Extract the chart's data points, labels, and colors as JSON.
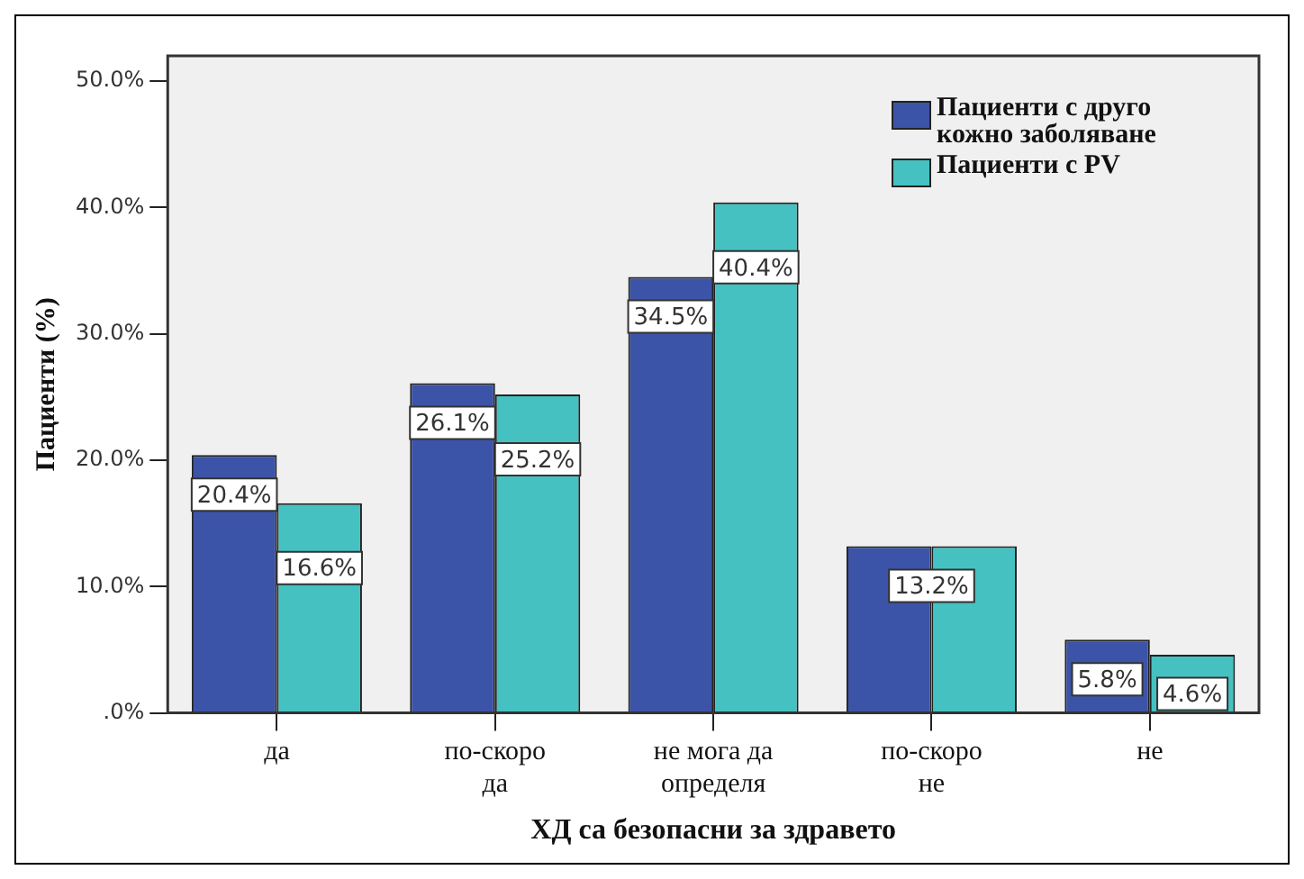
{
  "chart_data": {
    "type": "bar",
    "xlabel": "ХД са безопасни за здравето",
    "ylabel": "Пациенти (%)",
    "categories": [
      "да",
      "по-скоро да",
      "не мога да определя",
      "по-скоро не",
      "не"
    ],
    "series": [
      {
        "name": "Пациенти с друго кожно заболяване",
        "color": "#3c54a8",
        "values": [
          20.4,
          26.1,
          34.5,
          13.2,
          5.8
        ],
        "value_labels": [
          "20.4%",
          "26.1%",
          "34.5%",
          "13.2%",
          "5.8%"
        ]
      },
      {
        "name": "Пациенти с PV",
        "color": "#45c1c1",
        "values": [
          16.6,
          25.2,
          40.4,
          13.2,
          4.6
        ],
        "value_labels": [
          "16.6%",
          "25.2%",
          "40.4%",
          null,
          "4.6%"
        ]
      }
    ],
    "ylim": [
      0,
      52
    ],
    "yticks": [
      {
        "value": 0,
        "label": ".0%"
      },
      {
        "value": 10,
        "label": "10.0%"
      },
      {
        "value": 20,
        "label": "20.0%"
      },
      {
        "value": 30,
        "label": "30.0%"
      },
      {
        "value": 40,
        "label": "40.0%"
      },
      {
        "value": 50,
        "label": "50.0%"
      }
    ],
    "grid": false,
    "legend": "top right"
  }
}
